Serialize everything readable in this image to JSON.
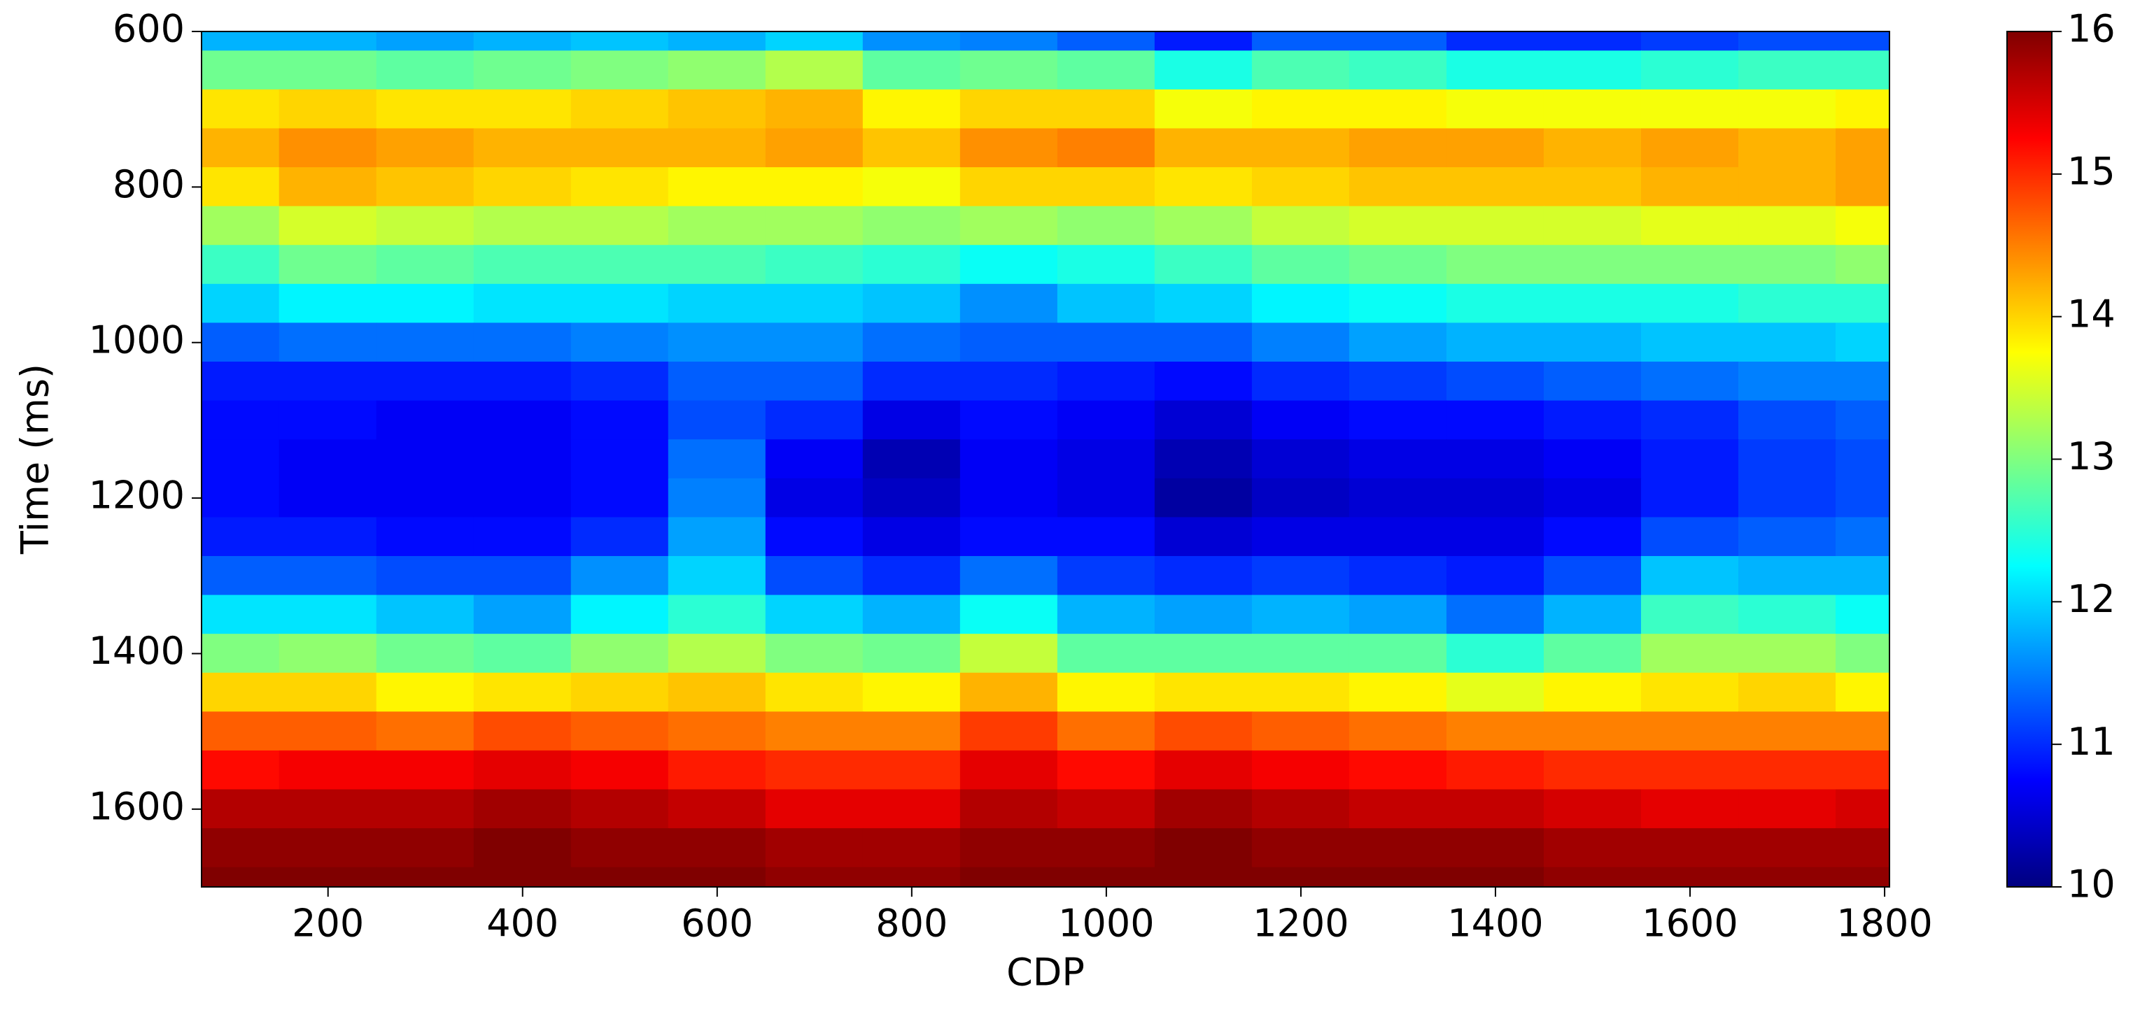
{
  "chart_data": {
    "type": "heatmap",
    "colormap": "jet",
    "x_label": "CDP",
    "y_label": "Time (ms)",
    "xlim": [
      70,
      1805
    ],
    "ylim": [
      1700,
      600
    ],
    "y_inverted": true,
    "xticks": [
      200,
      400,
      600,
      800,
      1000,
      1200,
      1400,
      1600,
      1800
    ],
    "yticks": [
      600,
      800,
      1000,
      1200,
      1400,
      1600
    ],
    "clim": [
      10,
      16
    ],
    "cticks": [
      10,
      11,
      12,
      13,
      14,
      15,
      16
    ],
    "x": [
      100,
      200,
      300,
      400,
      500,
      600,
      700,
      800,
      900,
      1000,
      1100,
      1200,
      1300,
      1400,
      1500,
      1600,
      1700,
      1800
    ],
    "y": [
      600,
      650,
      700,
      750,
      800,
      850,
      900,
      950,
      1000,
      1050,
      1100,
      1150,
      1200,
      1250,
      1300,
      1350,
      1400,
      1450,
      1500,
      1550,
      1600,
      1650,
      1700
    ],
    "z": [
      [
        11.8,
        11.8,
        11.7,
        11.8,
        11.9,
        11.8,
        12.0,
        11.6,
        11.5,
        11.3,
        10.9,
        11.3,
        11.3,
        11.0,
        11.0,
        11.1,
        11.2,
        11.2
      ],
      [
        12.9,
        12.9,
        12.8,
        12.9,
        13.0,
        13.1,
        13.3,
        12.8,
        12.9,
        12.8,
        12.4,
        12.7,
        12.6,
        12.4,
        12.4,
        12.5,
        12.6,
        12.6
      ],
      [
        13.9,
        14.0,
        13.9,
        13.9,
        14.0,
        14.1,
        14.2,
        13.8,
        14.0,
        14.0,
        13.7,
        13.8,
        13.8,
        13.7,
        13.7,
        13.7,
        13.7,
        13.8
      ],
      [
        14.2,
        14.4,
        14.3,
        14.2,
        14.2,
        14.2,
        14.3,
        14.1,
        14.4,
        14.5,
        14.2,
        14.2,
        14.3,
        14.3,
        14.2,
        14.3,
        14.2,
        14.3
      ],
      [
        13.9,
        14.2,
        14.1,
        14.0,
        13.9,
        13.8,
        13.8,
        13.7,
        14.0,
        14.0,
        13.9,
        14.0,
        14.1,
        14.1,
        14.1,
        14.2,
        14.2,
        14.3
      ],
      [
        13.2,
        13.5,
        13.4,
        13.3,
        13.3,
        13.2,
        13.2,
        13.1,
        13.2,
        13.1,
        13.2,
        13.4,
        13.5,
        13.5,
        13.5,
        13.6,
        13.6,
        13.7
      ],
      [
        12.6,
        12.9,
        12.8,
        12.7,
        12.7,
        12.7,
        12.6,
        12.5,
        12.3,
        12.4,
        12.6,
        12.8,
        12.9,
        13.0,
        13.0,
        13.0,
        13.0,
        13.1
      ],
      [
        12.0,
        12.2,
        12.2,
        12.1,
        12.1,
        12.0,
        12.0,
        11.9,
        11.6,
        11.9,
        12.0,
        12.2,
        12.3,
        12.4,
        12.4,
        12.4,
        12.5,
        12.5
      ],
      [
        11.3,
        11.4,
        11.4,
        11.4,
        11.5,
        11.6,
        11.6,
        11.4,
        11.3,
        11.3,
        11.3,
        11.5,
        11.7,
        11.8,
        11.8,
        11.9,
        11.9,
        12.0
      ],
      [
        10.9,
        10.9,
        10.9,
        10.9,
        11.0,
        11.3,
        11.3,
        11.0,
        11.0,
        10.9,
        10.8,
        11.0,
        11.1,
        11.2,
        11.3,
        11.4,
        11.5,
        11.5
      ],
      [
        10.8,
        10.8,
        10.7,
        10.7,
        10.8,
        11.2,
        11.0,
        10.6,
        10.8,
        10.7,
        10.5,
        10.7,
        10.8,
        10.8,
        10.9,
        11.0,
        11.2,
        11.3
      ],
      [
        10.8,
        10.7,
        10.7,
        10.7,
        10.8,
        11.4,
        10.7,
        10.3,
        10.7,
        10.6,
        10.3,
        10.5,
        10.6,
        10.6,
        10.7,
        10.9,
        11.1,
        11.2
      ],
      [
        10.8,
        10.7,
        10.7,
        10.7,
        10.8,
        11.5,
        10.6,
        10.4,
        10.7,
        10.6,
        10.2,
        10.4,
        10.5,
        10.5,
        10.6,
        10.9,
        11.1,
        11.2
      ],
      [
        10.9,
        10.9,
        10.8,
        10.8,
        11.0,
        11.7,
        10.8,
        10.6,
        10.8,
        10.8,
        10.5,
        10.6,
        10.6,
        10.6,
        10.8,
        11.2,
        11.3,
        11.4
      ],
      [
        11.3,
        11.3,
        11.2,
        11.2,
        11.6,
        12.0,
        11.2,
        11.0,
        11.4,
        11.1,
        11.0,
        11.1,
        11.0,
        10.9,
        11.2,
        11.9,
        11.8,
        11.8
      ],
      [
        12.1,
        12.1,
        11.9,
        11.7,
        12.2,
        12.5,
        12.0,
        11.8,
        12.3,
        11.8,
        11.7,
        11.8,
        11.7,
        11.4,
        11.8,
        12.6,
        12.5,
        12.3
      ],
      [
        13.0,
        13.1,
        12.9,
        12.8,
        13.1,
        13.3,
        13.0,
        12.9,
        13.4,
        12.8,
        12.8,
        12.8,
        12.8,
        12.5,
        12.8,
        13.2,
        13.2,
        13.0
      ],
      [
        14.0,
        14.0,
        13.8,
        13.9,
        14.0,
        14.1,
        13.9,
        13.8,
        14.2,
        13.8,
        13.9,
        13.9,
        13.8,
        13.6,
        13.8,
        13.9,
        14.0,
        13.8
      ],
      [
        14.7,
        14.7,
        14.6,
        14.8,
        14.7,
        14.6,
        14.5,
        14.5,
        14.9,
        14.6,
        14.8,
        14.7,
        14.6,
        14.5,
        14.5,
        14.5,
        14.5,
        14.5
      ],
      [
        15.2,
        15.3,
        15.3,
        15.4,
        15.3,
        15.1,
        15.0,
        15.0,
        15.4,
        15.2,
        15.4,
        15.3,
        15.2,
        15.1,
        15.0,
        15.0,
        15.0,
        15.0
      ],
      [
        15.7,
        15.7,
        15.7,
        15.8,
        15.7,
        15.6,
        15.4,
        15.4,
        15.7,
        15.6,
        15.8,
        15.7,
        15.6,
        15.6,
        15.5,
        15.4,
        15.4,
        15.5
      ],
      [
        15.9,
        15.9,
        15.9,
        16.0,
        15.9,
        15.9,
        15.8,
        15.8,
        15.9,
        15.9,
        16.0,
        15.9,
        15.9,
        15.9,
        15.8,
        15.8,
        15.8,
        15.8
      ],
      [
        16.0,
        16.0,
        16.0,
        16.0,
        16.0,
        16.0,
        15.9,
        15.9,
        16.0,
        16.0,
        16.0,
        16.0,
        16.0,
        16.0,
        15.9,
        15.9,
        15.9,
        15.9
      ]
    ]
  }
}
